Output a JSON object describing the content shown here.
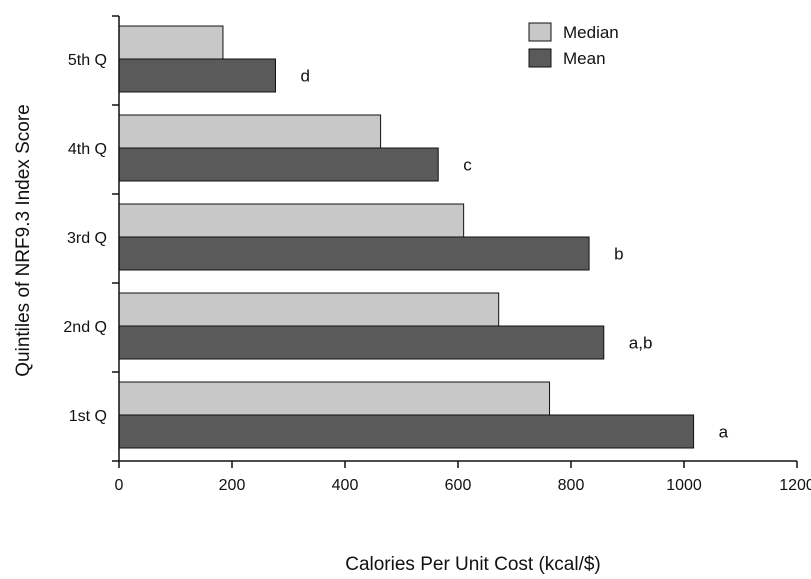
{
  "chart_data": {
    "type": "bar",
    "orientation": "horizontal",
    "categories": [
      "1st Q",
      "2nd Q",
      "3rd Q",
      "4th Q",
      "5th Q"
    ],
    "series": [
      {
        "name": "Median",
        "color": "#c8c8c8",
        "values": [
          762,
          672,
          610,
          463,
          184
        ]
      },
      {
        "name": "Mean",
        "color": "#5a5a5a",
        "values": [
          1017,
          858,
          832,
          565,
          277
        ]
      }
    ],
    "annotations": [
      "a",
      "a,b",
      "b",
      "c",
      "d"
    ],
    "xlabel": "Calories Per Unit Cost (kcal/$)",
    "ylabel": "Quintiles of NRF9.3 Index Score",
    "xlim": [
      0,
      1200
    ],
    "xticks": [
      0,
      200,
      400,
      600,
      800,
      1000,
      1200
    ],
    "legend_position": "top-right",
    "grid": false
  }
}
